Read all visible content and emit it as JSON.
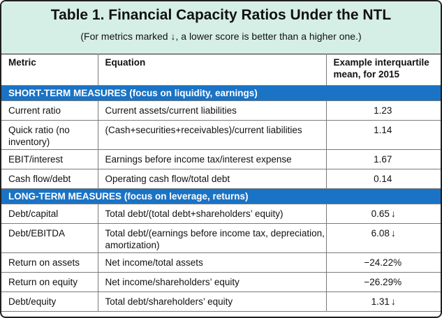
{
  "title": "Table 1. Financial Capacity Ratios Under the NTL",
  "subtitle": "(For metrics marked ↓, a lower score is better than a higher one.)",
  "columns": [
    "Metric",
    "Equation",
    "Example interquartile mean, for 2015"
  ],
  "sections": [
    {
      "label": "SHORT-TERM MEASURES (focus on liquidity, earnings)",
      "rows": [
        {
          "metric": "Current ratio",
          "equation": "Current assets/current liabilities",
          "value": "1.23",
          "arrow": ""
        },
        {
          "metric": "Quick ratio (no inventory)",
          "equation": "(Cash+securities+receivables)/current liabilities",
          "value": "1.14",
          "arrow": ""
        },
        {
          "metric": "EBIT/interest",
          "equation": "Earnings before income tax/interest expense",
          "value": "1.67",
          "arrow": ""
        },
        {
          "metric": "Cash flow/debt",
          "equation": "Operating cash flow/total debt",
          "value": "0.14",
          "arrow": ""
        }
      ]
    },
    {
      "label": "LONG-TERM MEASURES (focus on leverage, returns)",
      "rows": [
        {
          "metric": "Debt/capital",
          "equation": "Total debt/(total debt+shareholders’ equity)",
          "value": "0.65",
          "arrow": "↓"
        },
        {
          "metric": "Debt/EBITDA",
          "equation": "Total debt/(earnings before income tax, depreciation, amortization)",
          "value": "6.08",
          "arrow": "↓"
        },
        {
          "metric": "Return on assets",
          "equation": "Net income/total assets",
          "value": "−24.22%",
          "arrow": ""
        },
        {
          "metric": "Return on equity",
          "equation": "Net income/shareholders’ equity",
          "value": "−26.29%",
          "arrow": ""
        },
        {
          "metric": "Debt/equity",
          "equation": "Total debt/shareholders’ equity",
          "value": "1.31",
          "arrow": "↓"
        }
      ]
    }
  ]
}
